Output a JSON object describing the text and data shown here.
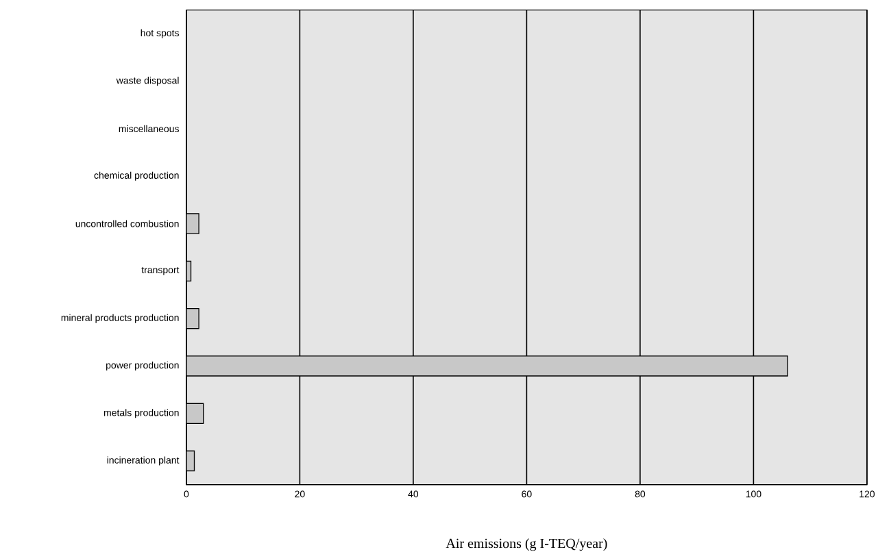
{
  "chart_data": {
    "type": "bar",
    "orientation": "horizontal",
    "xlabel": "Air emissions (g I-TEQ/year)",
    "categories": [
      "hot spots",
      "waste disposal",
      "miscellaneous",
      "chemical production",
      "uncontrolled combustion",
      "transport",
      "mineral products production",
      "power production",
      "metals production",
      "incineration plant"
    ],
    "values": [
      0,
      0,
      0,
      0,
      2.2,
      0.8,
      2.2,
      106,
      3.0,
      1.4
    ],
    "color": "#c8c8c8",
    "xlim": [
      0,
      120
    ],
    "xticks": [
      0,
      20,
      40,
      60,
      80,
      100,
      120
    ],
    "grid": "x"
  }
}
